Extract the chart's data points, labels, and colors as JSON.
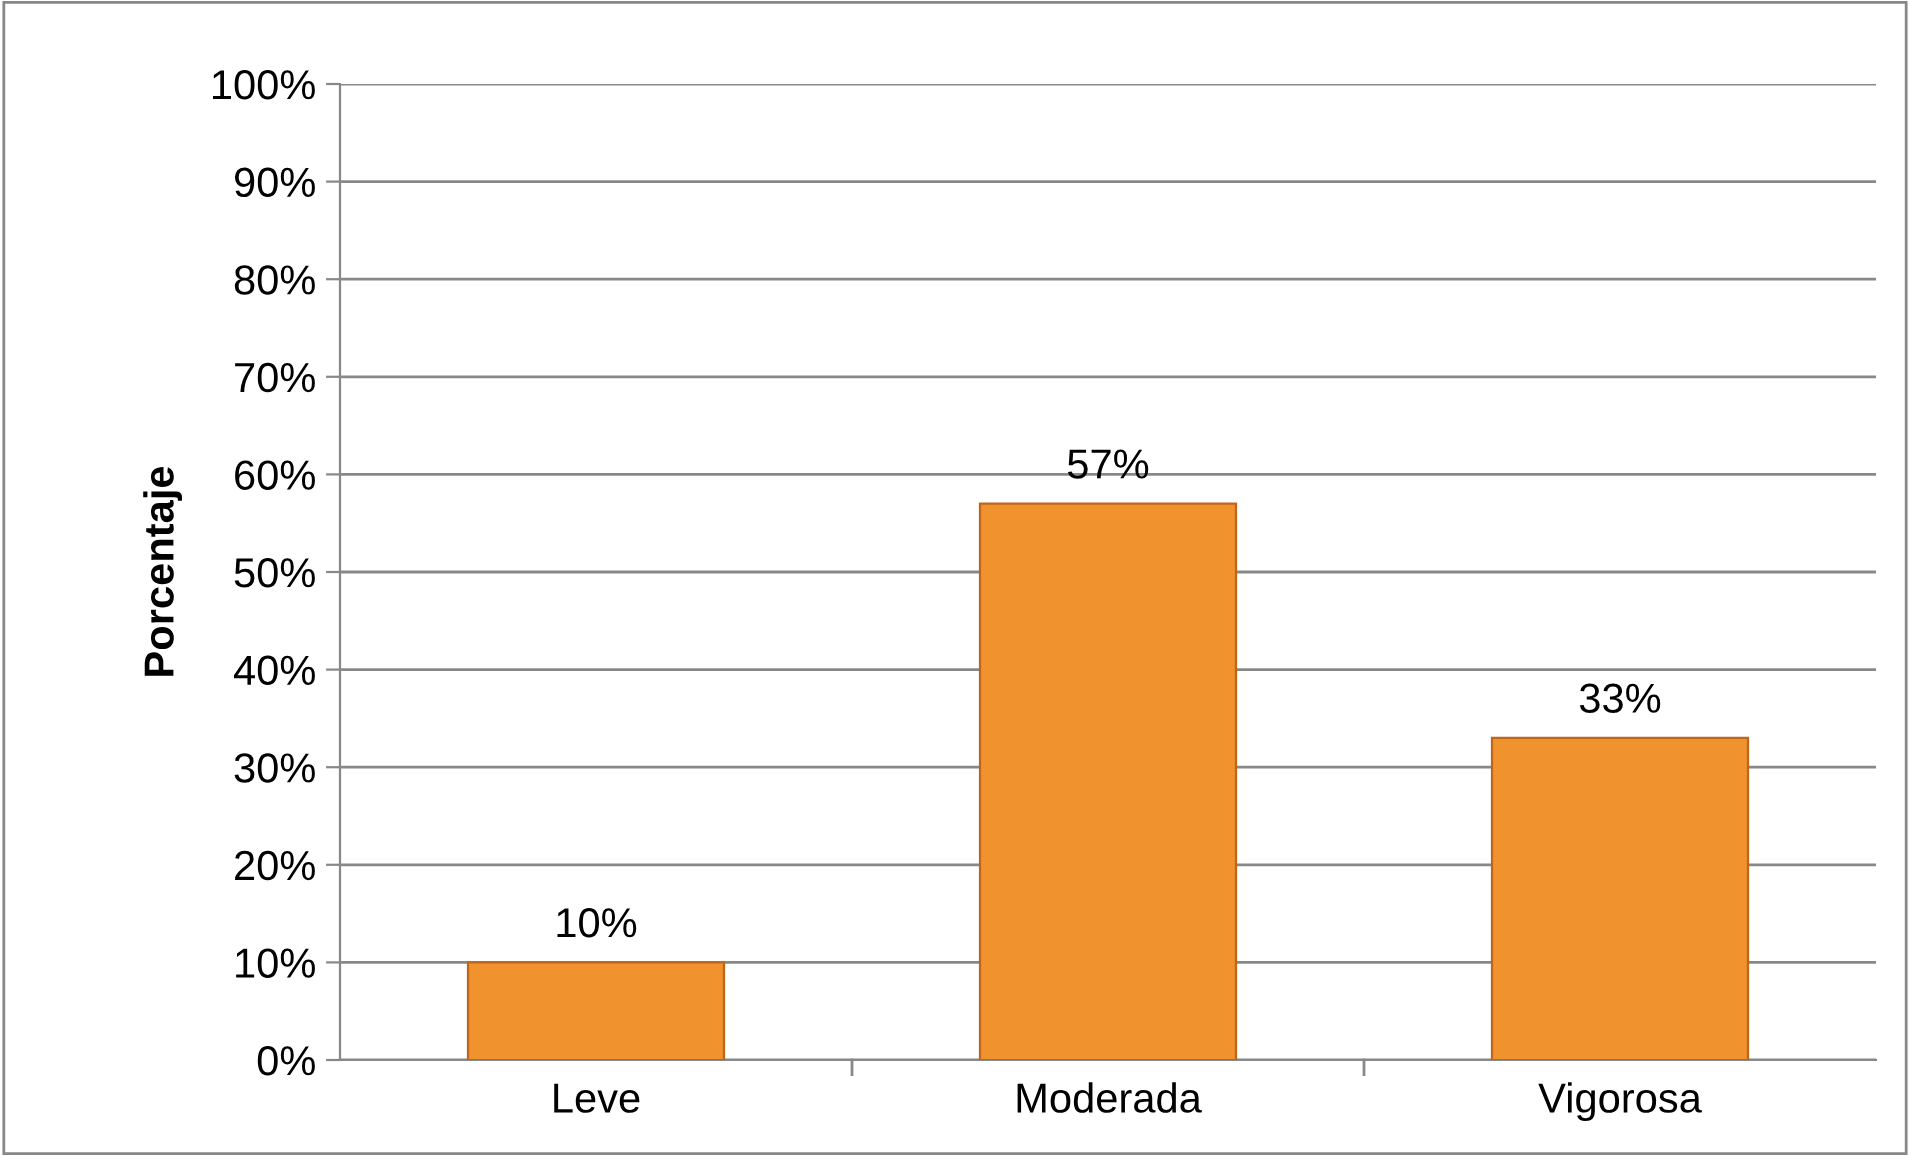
{
  "chart_data": {
    "type": "bar",
    "ylabel": "Porcentaje",
    "categories": [
      "Leve",
      "Moderada",
      "Vigorosa"
    ],
    "values": [
      10,
      57,
      33
    ],
    "color": "#f0922e",
    "value_labels": [
      "10%",
      "57%",
      "33%"
    ],
    "ylim": [
      0,
      100
    ],
    "yticks": [
      {
        "value": 0,
        "label": "0%"
      },
      {
        "value": 10,
        "label": "10%"
      },
      {
        "value": 20,
        "label": "20%"
      },
      {
        "value": 30,
        "label": "30%"
      },
      {
        "value": 40,
        "label": "40%"
      },
      {
        "value": 50,
        "label": "50%"
      },
      {
        "value": 60,
        "label": "60%"
      },
      {
        "value": 70,
        "label": "70%"
      },
      {
        "value": 80,
        "label": "80%"
      },
      {
        "value": 90,
        "label": "90%"
      },
      {
        "value": 100,
        "label": "100%"
      }
    ],
    "grid": "y"
  }
}
